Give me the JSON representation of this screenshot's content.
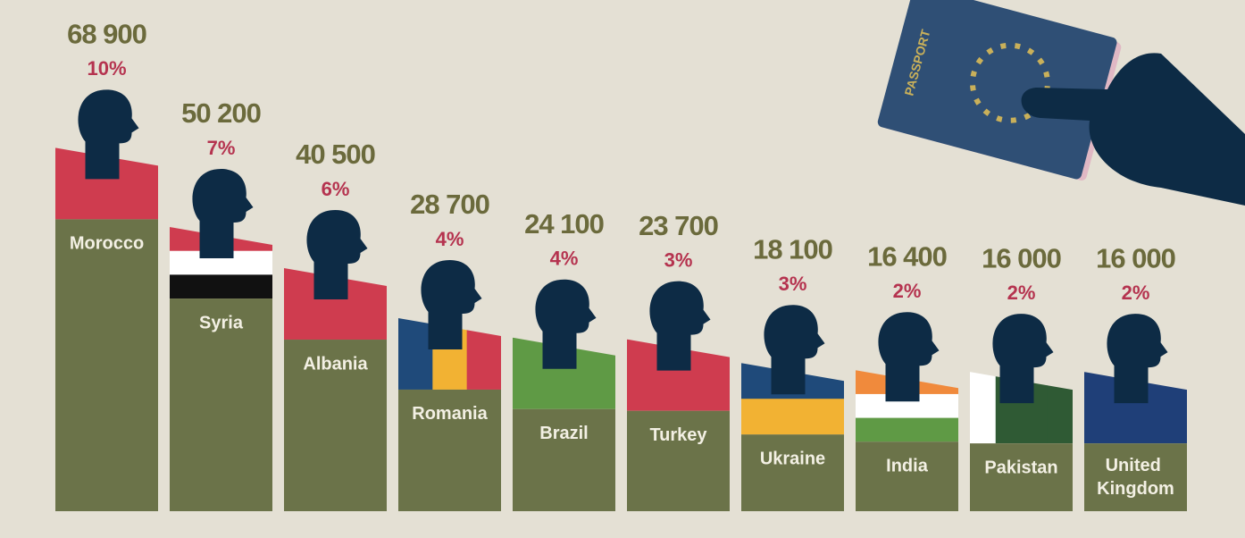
{
  "chart_data": {
    "type": "bar",
    "categories": [
      "Morocco",
      "Syria",
      "Albania",
      "Romania",
      "Brazil",
      "Turkey",
      "Ukraine",
      "India",
      "Pakistan",
      "United Kingdom"
    ],
    "series": [
      {
        "color": "#6b7349",
        "values": [
          68900,
          50200,
          40500,
          28700,
          24100,
          23700,
          18100,
          16400,
          16000,
          16000
        ],
        "value_labels": [
          "68 900",
          "50 200",
          "40 500",
          "28 700",
          "24 100",
          "23 700",
          "18 100",
          "16 400",
          "16 000",
          "16 000"
        ]
      },
      {
        "color": "#b5334f",
        "values": [
          10,
          7,
          6,
          4,
          4,
          3,
          3,
          2,
          2,
          2
        ],
        "value_labels": [
          "10%",
          "7%",
          "6%",
          "4%",
          "4%",
          "3%",
          "3%",
          "2%",
          "2%",
          "2%"
        ]
      }
    ],
    "passport_text": "PASSPORT"
  }
}
